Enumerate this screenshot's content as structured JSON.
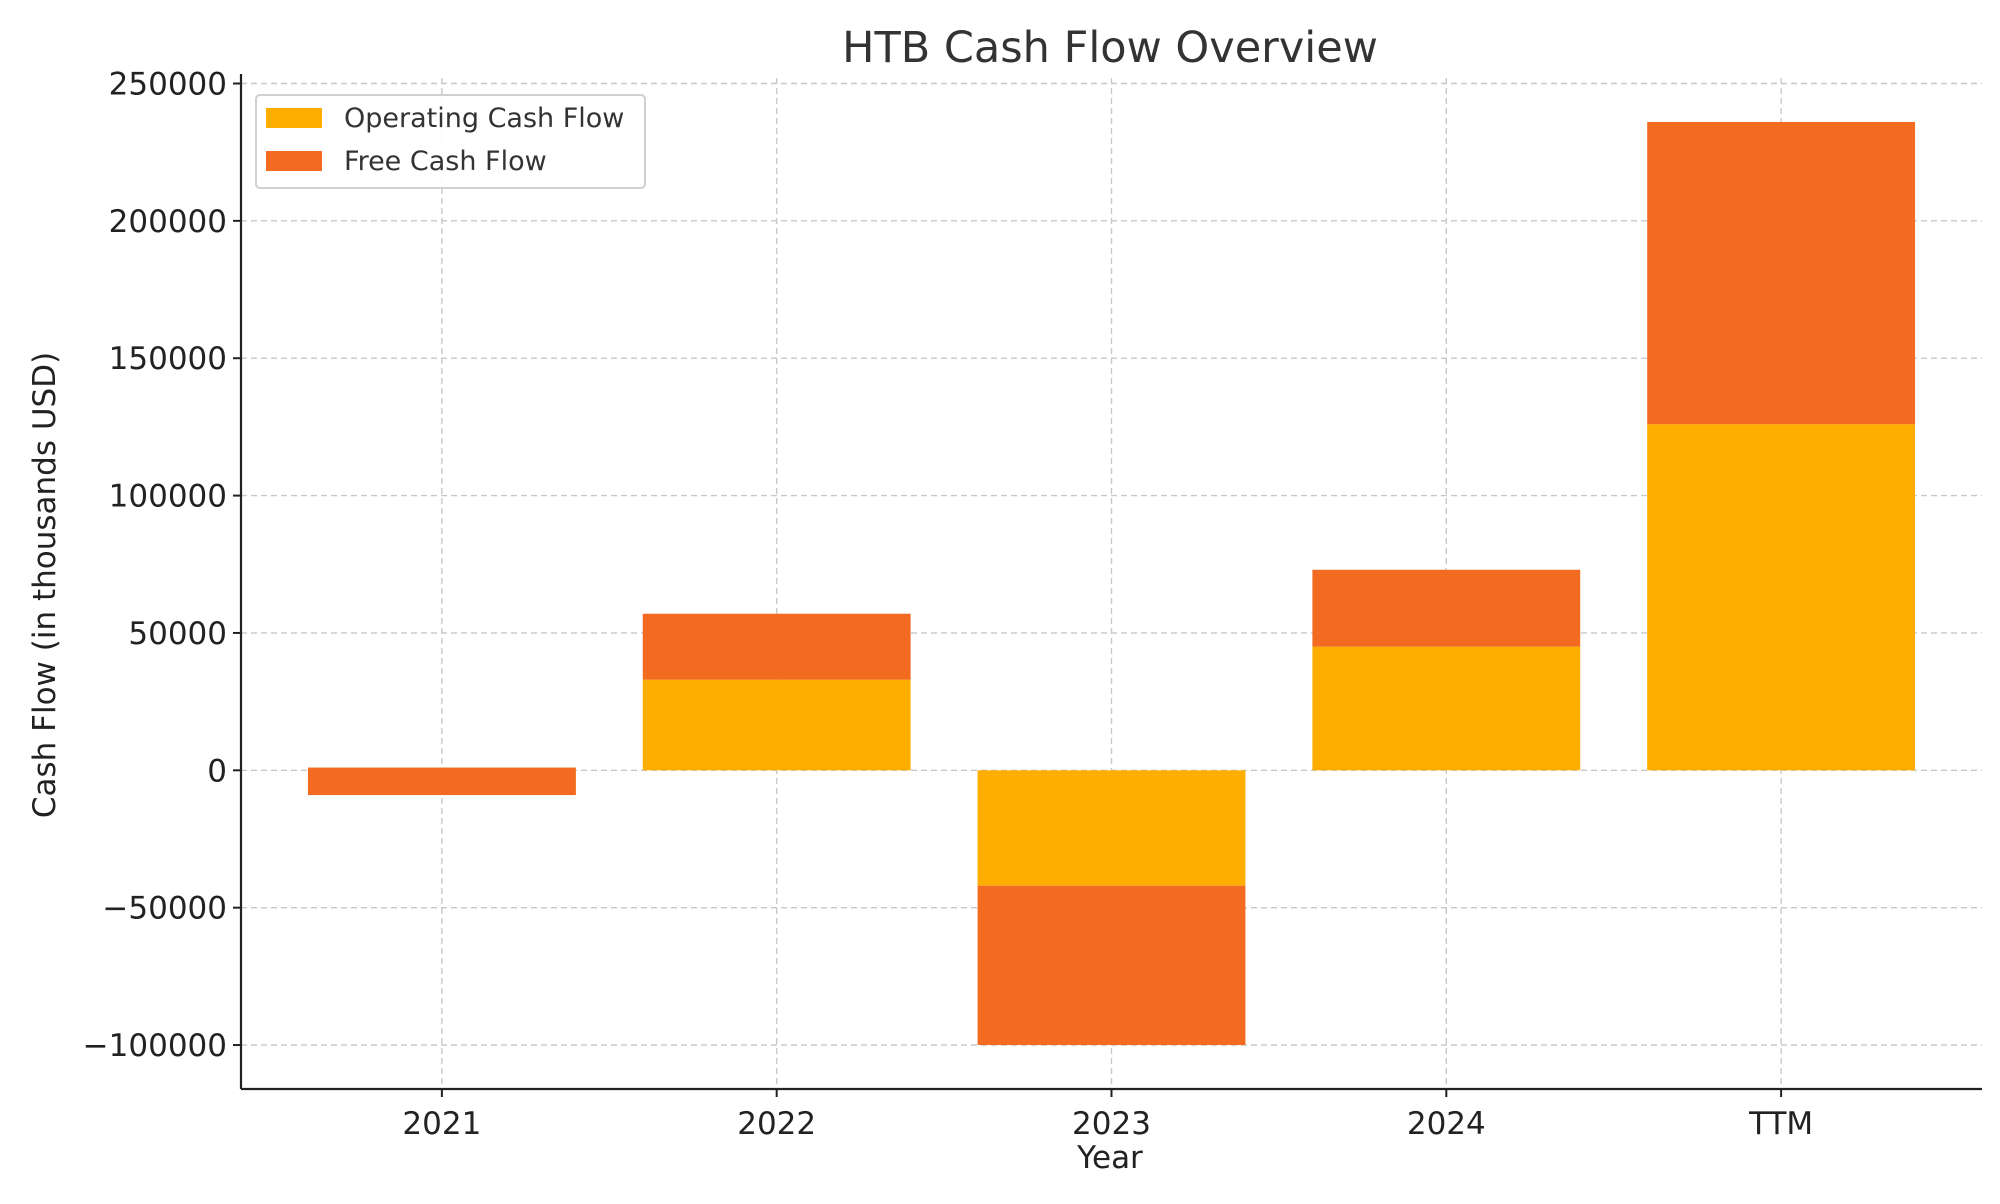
{
  "chart_data": {
    "type": "bar",
    "stacked": true,
    "title": "HTB Cash Flow Overview",
    "xlabel": "Year",
    "ylabel": "Cash Flow (in thousands USD)",
    "categories": [
      "2021",
      "2022",
      "2023",
      "2024",
      "TTM"
    ],
    "series": [
      {
        "name": "Operating Cash Flow",
        "color": "#FFAE00",
        "values": [
          -9000,
          33000,
          -42000,
          45000,
          126000
        ]
      },
      {
        "name": "Free Cash Flow",
        "color": "#F26B21",
        "values": [
          10000,
          24000,
          -58000,
          28000,
          110000
        ]
      }
    ],
    "ylim": [
      -116000,
      252000
    ],
    "yticks": [
      -100000,
      -50000,
      0,
      50000,
      100000,
      150000,
      200000,
      250000
    ],
    "ytick_labels": [
      "−100000",
      "−50000",
      "0",
      "50000",
      "100000",
      "150000",
      "200000",
      "250000"
    ],
    "grid": true,
    "legend_position": "top-left"
  }
}
